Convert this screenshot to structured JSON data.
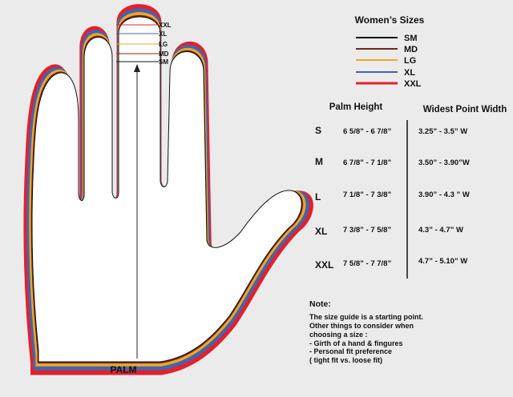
{
  "hand": {
    "size_markers": [
      "XXL",
      "XL",
      "LG",
      "MD",
      "SM"
    ],
    "palm_label": "PALM"
  },
  "legend": {
    "title": "Women’s Sizes",
    "items": [
      {
        "label": "SM",
        "color": "#111111"
      },
      {
        "label": "MD",
        "color": "#7a2616"
      },
      {
        "label": "LG",
        "color": "#e8a92a"
      },
      {
        "label": "XL",
        "color": "#4a62a8"
      },
      {
        "label": "XXL",
        "color": "#e3202c"
      }
    ]
  },
  "table": {
    "headers": {
      "palm": "Palm Height",
      "width": "Widest Point Width"
    },
    "rows": [
      {
        "size": "S",
        "palm": "6 5/8”  - 6 7/8”",
        "width": "3.25” - 3.5”  W"
      },
      {
        "size": "M",
        "palm": "6 7/8”  - 7 1/8”",
        "width": "3.50”  - 3.90”W"
      },
      {
        "size": "L",
        "palm": "7 1/8”  - 7 3/8”",
        "width": "3.90”  - 4.3 ” W"
      },
      {
        "size": "XL",
        "palm": "7 3/8”  - 7 5/8”",
        "width": "4.3”  - 4.7”    W"
      },
      {
        "size": "XXL",
        "palm": "7 5/8”  - 7 7/8”",
        "width": "4.7”  - 5.10”  W"
      }
    ]
  },
  "note": {
    "title": "Note:",
    "lines": [
      "The size guide is a starting point.",
      "Other things to consider when",
      "choosing a size :",
      "- Girth of a hand & fingures",
      "- Personal fit preference",
      "( tight fit vs. loose fit)"
    ]
  }
}
